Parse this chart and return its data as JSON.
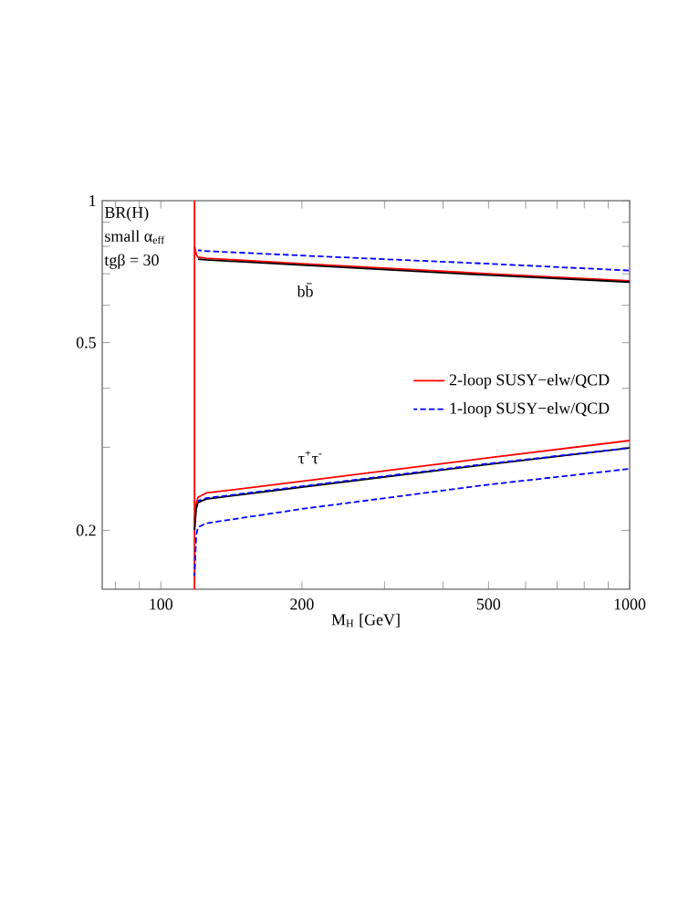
{
  "chart_data": {
    "type": "line",
    "log": "xy",
    "xlabel": "M$_{H}$ [GeV]",
    "xlim": [
      75,
      1000
    ],
    "ylim": [
      0.15,
      1
    ],
    "xticks": [
      {
        "value": 80,
        "label": null
      },
      {
        "value": 90,
        "label": null
      },
      100,
      200,
      {
        "value": 300,
        "label": null
      },
      {
        "value": 400,
        "label": null
      },
      500,
      {
        "value": 600,
        "label": null
      },
      {
        "value": 700,
        "label": null
      },
      {
        "value": 800,
        "label": null
      },
      {
        "value": 900,
        "label": null
      },
      1000
    ],
    "yticks": [
      0.2,
      {
        "value": 0.3,
        "label": null
      },
      {
        "value": 0.4,
        "label": null
      },
      0.5,
      {
        "value": 0.6,
        "label": null
      },
      {
        "value": 0.7,
        "label": null
      },
      {
        "value": 0.8,
        "label": null
      },
      {
        "value": 0.9,
        "label": null
      },
      1
    ],
    "legend": "right",
    "grid": false,
    "series": [
      {
        "name": "2-loop SUSY−elw/QCD",
        "color": "#ff0000",
        "line_style": "solid",
        "x": [
          118,
          119,
          120,
          125,
          200,
          500,
          1000
        ],
        "values": [
          0.8,
          0.77,
          0.759,
          0.755,
          0.735,
          0.7,
          0.676
        ]
      },
      {
        "name": "1-loop SUSY−elw/QCD",
        "color": "#0000ff",
        "line_style": "dashed",
        "x": [
          120,
          125,
          200,
          500,
          1000
        ],
        "values": [
          0.785,
          0.782,
          0.765,
          0.735,
          0.711
        ]
      },
      {
        "color": "#000000",
        "line_style": "solid",
        "x": [
          120,
          125,
          200,
          500,
          1000
        ],
        "values": [
          0.752,
          0.749,
          0.73,
          0.695,
          0.672
        ]
      },
      {
        "color": "#ff0000",
        "line_style": "solid",
        "x": [
          118,
          119,
          120,
          125,
          200,
          500,
          1000
        ],
        "values": [
          0.21,
          0.228,
          0.235,
          0.24,
          0.254,
          0.285,
          0.31
        ]
      },
      {
        "color": "#000000",
        "line_style": "solid",
        "x": [
          118,
          119,
          120,
          125,
          200,
          500,
          1000
        ],
        "values": [
          0.2,
          0.222,
          0.229,
          0.233,
          0.247,
          0.276,
          0.299
        ]
      },
      {
        "color": "#0000ff",
        "line_style": "dashed",
        "x": [
          120,
          125,
          200,
          500,
          1000
        ],
        "values": [
          0.231,
          0.234,
          0.248,
          0.277,
          0.299
        ]
      },
      {
        "color": "#0000ff",
        "line_style": "dashed",
        "x": [
          118,
          119,
          120,
          125,
          200,
          500,
          1000
        ],
        "values": [
          0.16,
          0.195,
          0.203,
          0.207,
          0.222,
          0.25,
          0.27
        ]
      }
    ],
    "ref_lines": [
      {
        "axis": "x",
        "value": 118,
        "color": "#ff0000"
      }
    ],
    "annotations": [
      "BR(H)",
      "small α$_{eff}$",
      "tgβ = 30",
      "bb̄",
      "τ$^{+}$τ$^{-}$"
    ]
  }
}
